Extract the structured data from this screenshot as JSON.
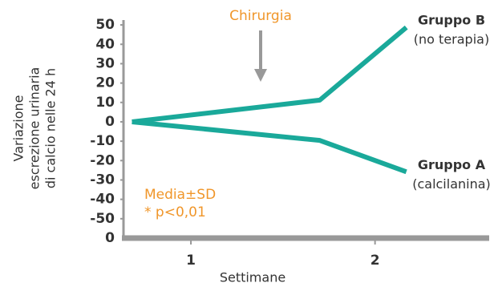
{
  "chart_data": {
    "type": "line",
    "annotation": "Chirurgia",
    "note_lines": [
      "Media±SD",
      "* p<0,01"
    ],
    "ylabel_lines": [
      "Variazione",
      "escrezione urinaria",
      "di calcio nelle 24 h"
    ],
    "xlabel": "Settimane",
    "x": [
      0.68,
      1.7,
      2.17
    ],
    "xlim": [
      0.66,
      2.62
    ],
    "xticks": [
      1,
      2
    ],
    "ylim": [
      -60,
      55
    ],
    "yticks": [
      50,
      40,
      30,
      20,
      10,
      0,
      -10,
      -20,
      -30,
      -40,
      -50
    ],
    "baseline_label": "0",
    "series": [
      {
        "name": "Gruppo B",
        "note": "(no terapia)",
        "color": "#1aa99a",
        "values": [
          0,
          11.2,
          48.7
        ]
      },
      {
        "name": "Gruppo A",
        "note": "(calcilanina)",
        "color": "#1aa99a",
        "values": [
          0,
          -9.6,
          -25.8
        ]
      }
    ]
  }
}
